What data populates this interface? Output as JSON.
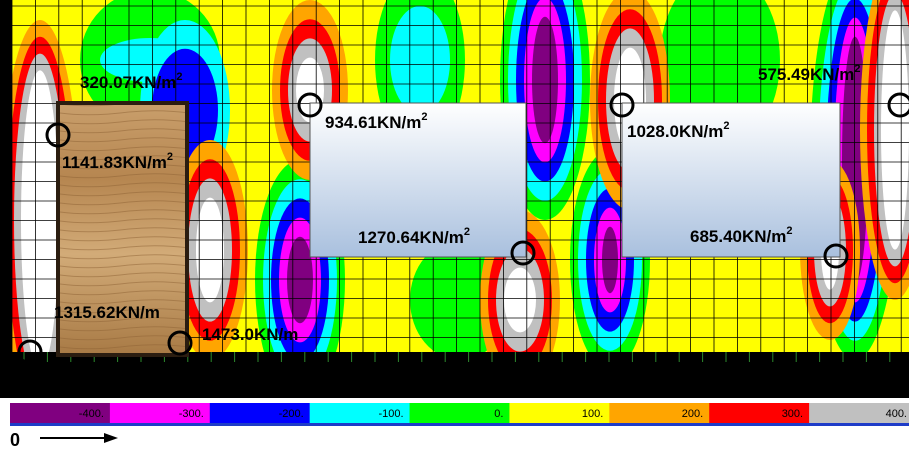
{
  "annotations": [
    {
      "text": "320.07KN/m",
      "sup": "2"
    },
    {
      "text": "1141.83KN/m",
      "sup": "2"
    },
    {
      "text": "934.61KN/m",
      "sup": "2"
    },
    {
      "text": "1270.64KN/m",
      "sup": "2"
    },
    {
      "text": "1028.0KN/m",
      "sup": "2"
    },
    {
      "text": "685.40KN/m",
      "sup": "2"
    },
    {
      "text": "575.49KN/m",
      "sup": "2"
    },
    {
      "text": "1315.62KN/m"
    },
    {
      "text": "1473.0KN/m"
    }
  ],
  "legend": {
    "labels": [
      "-400.",
      "-300.",
      "-200.",
      "-100.",
      "0.",
      "100.",
      "200.",
      "300.",
      "400."
    ]
  },
  "axis": {
    "label": "0"
  }
}
